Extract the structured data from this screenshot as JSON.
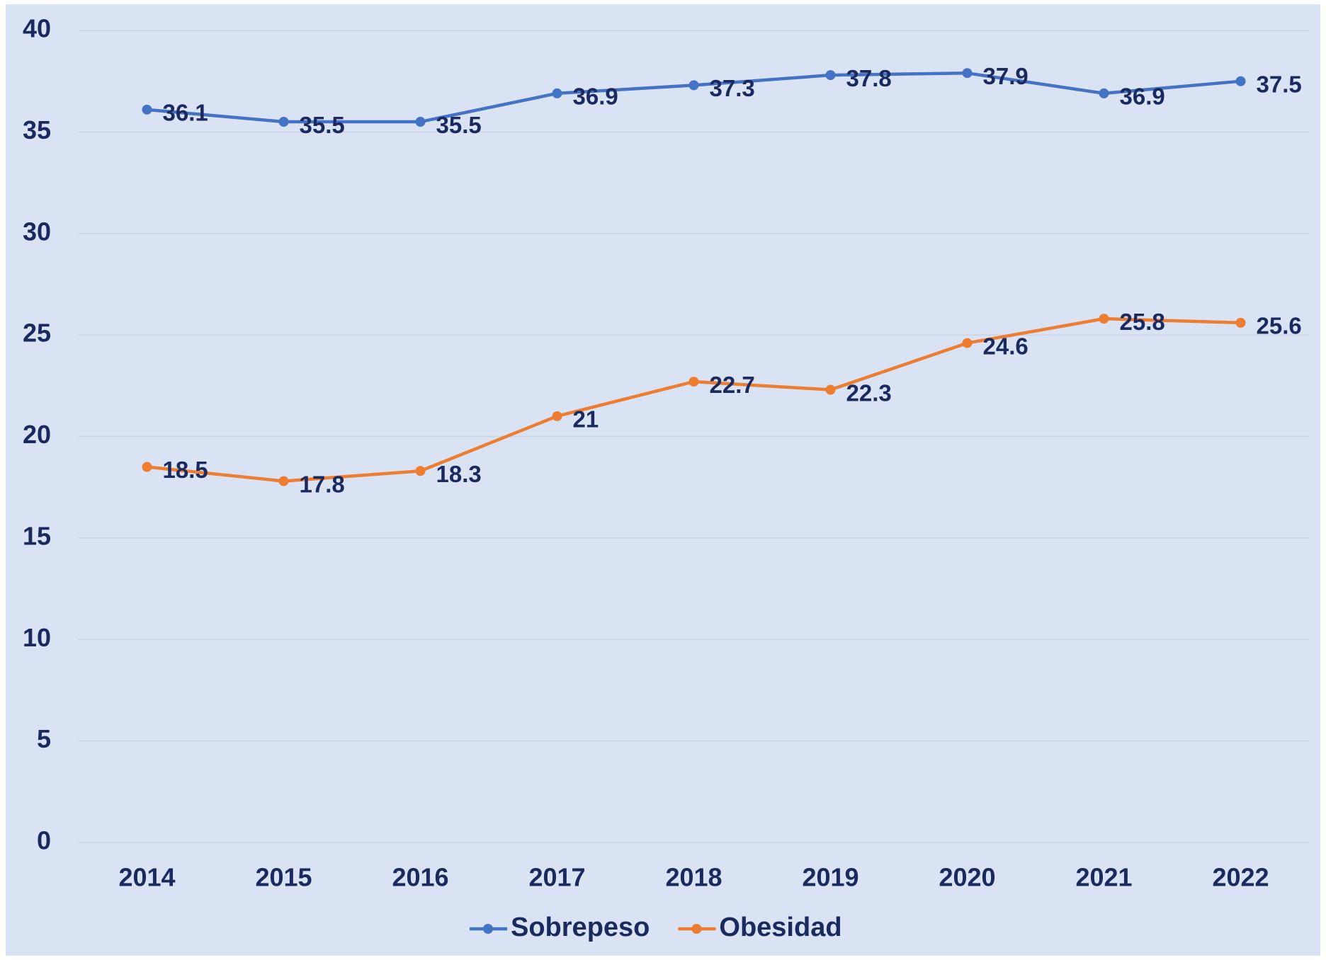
{
  "chart_data": {
    "type": "line",
    "categories": [
      "2014",
      "2015",
      "2016",
      "2017",
      "2018",
      "2019",
      "2020",
      "2021",
      "2022"
    ],
    "series": [
      {
        "name": "Sobrepeso",
        "color": "#4472c4",
        "values": [
          36.1,
          35.5,
          35.5,
          36.9,
          37.3,
          37.8,
          37.9,
          36.9,
          37.5
        ]
      },
      {
        "name": "Obesidad",
        "color": "#ed7d31",
        "values": [
          18.5,
          17.8,
          18.3,
          21,
          22.7,
          22.3,
          24.6,
          25.8,
          25.6
        ]
      }
    ],
    "ylim": [
      0,
      40
    ],
    "yticks": [
      0,
      5,
      10,
      15,
      20,
      25,
      30,
      35,
      40
    ],
    "grid": true,
    "legend": "bottom"
  }
}
